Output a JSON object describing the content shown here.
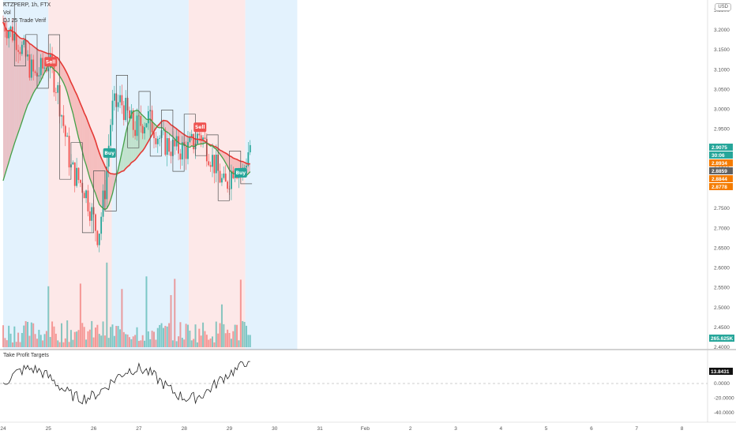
{
  "header": {
    "symbol_line": "KTZPERP, 1h, FTX",
    "sub_line_1": "Vol",
    "sub_line_2": "DJ 25 Trade Verif",
    "currency": "USD"
  },
  "oscillator_panel": {
    "title": "Take Profit Targets"
  },
  "colors": {
    "up": "#26a69a",
    "down": "#ef5350",
    "sma_fast": "#43a047",
    "sma_slow": "#e53935",
    "bg_blue": "#e3f2fd",
    "bg_red": "#fde8e8",
    "fill_green": "#a5d6a7",
    "fill_red": "#ef9a9a"
  },
  "chart_data": [
    {
      "type": "candlestick",
      "title": "KTZPERP, 1h, FTX",
      "x_ticks": [
        "24",
        "25",
        "26",
        "27",
        "28",
        "29",
        "30",
        "31",
        "Feb",
        "2",
        "3",
        "4",
        "5",
        "6",
        "7",
        "8"
      ],
      "y_ticks": [
        2.4,
        2.45,
        2.5,
        2.55,
        2.6,
        2.65,
        2.7,
        2.75,
        2.8,
        2.85,
        2.9,
        2.95,
        3.0,
        3.05,
        3.1,
        3.15,
        3.2,
        3.25
      ],
      "ylim": [
        2.38,
        3.27
      ],
      "background_regimes": [
        {
          "from_day": 0.0,
          "to_day": 1.0,
          "color": "blue"
        },
        {
          "from_day": 1.0,
          "to_day": 2.4,
          "color": "red"
        },
        {
          "from_day": 2.4,
          "to_day": 4.1,
          "color": "blue"
        },
        {
          "from_day": 4.1,
          "to_day": 5.35,
          "color": "red"
        },
        {
          "from_day": 5.35,
          "to_day": 6.5,
          "color": "blue"
        }
      ],
      "signals": [
        {
          "label": "Sell",
          "day": 1.05,
          "price": 3.12
        },
        {
          "label": "Buy",
          "day": 2.35,
          "price": 2.89
        },
        {
          "label": "Sell",
          "day": 4.35,
          "price": 2.955
        },
        {
          "label": "Buy",
          "day": 5.25,
          "price": 2.84
        }
      ],
      "price_labels": [
        {
          "value": "2.9075",
          "color": "#26a69a"
        },
        {
          "value": "30:06",
          "color": "#26a69a"
        },
        {
          "value": "2.8934",
          "color": "#f57c00"
        },
        {
          "value": "2.8859",
          "color": "#616161"
        },
        {
          "value": "2.8844",
          "color": "#f57c00"
        },
        {
          "value": "2.8778",
          "color": "#f57c00"
        }
      ],
      "volume_label": "265.625K"
    },
    {
      "type": "line",
      "title": "Take Profit Targets",
      "y_ticks": [
        "0.0000",
        "-20.0000",
        "-40.0000"
      ],
      "ylim": [
        -45,
        40
      ],
      "last_value": "13.8431",
      "zero_line": 0
    }
  ]
}
